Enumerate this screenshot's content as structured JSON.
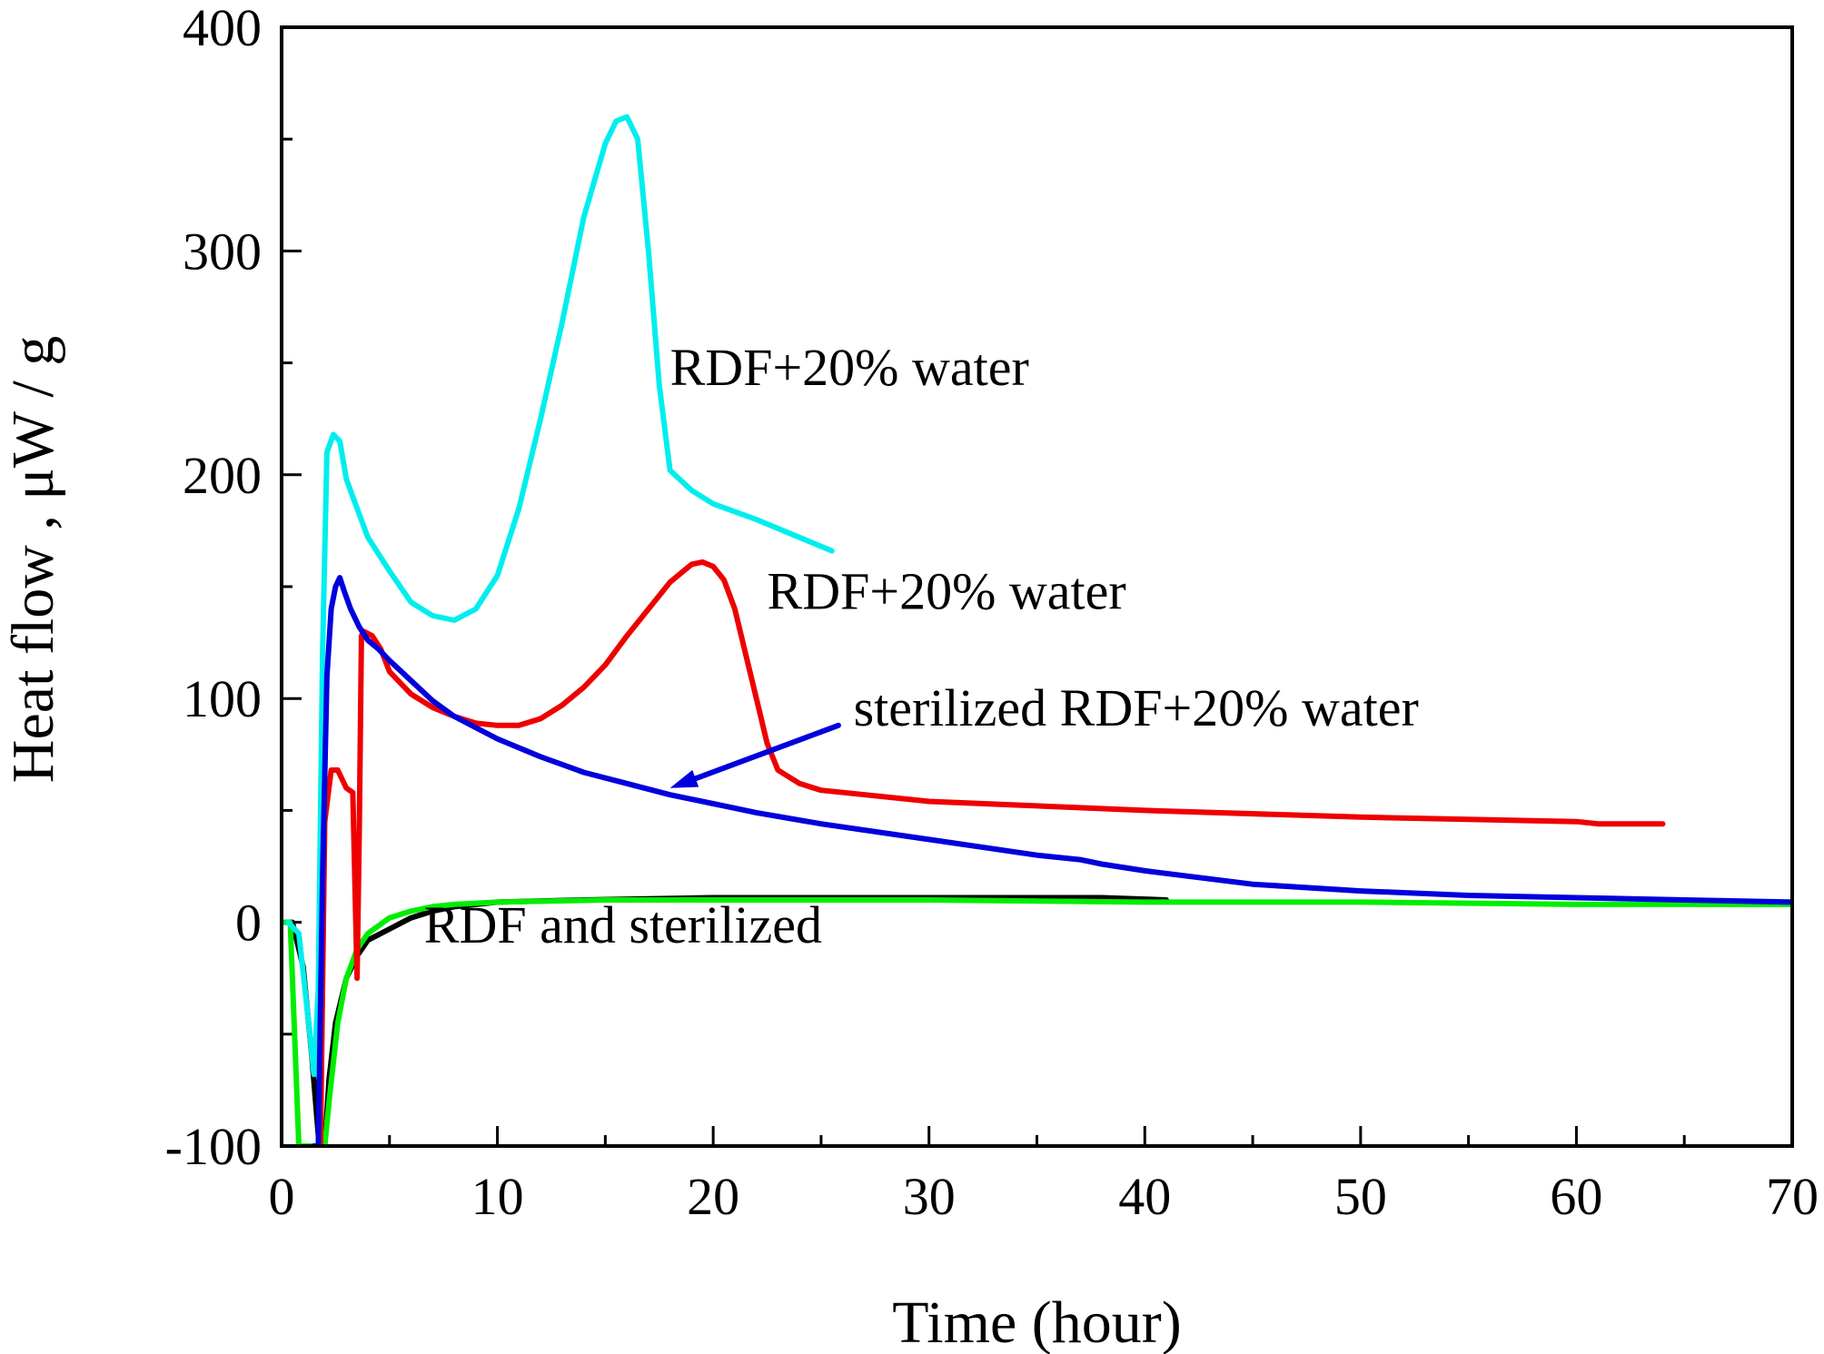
{
  "chart_data": {
    "type": "line",
    "title": "",
    "xlabel": "Time (hour)",
    "ylabel": "Heat flow , μW / g",
    "xlim": [
      0,
      70
    ],
    "ylim": [
      -100,
      400
    ],
    "x_ticks": [
      0,
      10,
      20,
      30,
      40,
      50,
      60,
      70
    ],
    "x_tick_labels": [
      "0",
      "10",
      "20",
      "30",
      "40",
      "50",
      "60",
      "70"
    ],
    "y_ticks": [
      -100,
      0,
      100,
      200,
      300,
      400
    ],
    "y_tick_labels": [
      "-100",
      "0",
      "100",
      "200",
      "300",
      "400"
    ],
    "grid": false,
    "series": [
      {
        "name": "RDF (black)",
        "color": "#000000",
        "x": [
          0.2,
          0.5,
          1.0,
          1.4,
          1.7,
          1.9,
          2.0,
          2.2,
          2.5,
          3.0,
          3.5,
          4.0,
          5.0,
          6.0,
          7.0,
          8.0,
          10.0,
          14.0,
          20.0,
          30.0,
          38.0,
          41.0
        ],
        "y": [
          0,
          0,
          -20,
          -60,
          -95,
          -100,
          -100,
          -70,
          -45,
          -25,
          -15,
          -8,
          -3,
          2,
          5,
          7,
          9,
          10,
          11,
          11,
          11,
          10
        ]
      },
      {
        "name": "sterilized RDF (green)",
        "color": "#00ee00",
        "x": [
          0.1,
          0.4,
          0.6,
          0.8,
          1.0,
          1.5,
          1.8,
          2.0,
          2.2,
          2.6,
          3.0,
          3.5,
          4.0,
          5.0,
          6.0,
          7.0,
          8.0,
          10.0,
          15.0,
          20.0,
          30.0,
          40.0,
          50.0,
          60.0,
          70.0
        ],
        "y": [
          0,
          0,
          -50,
          -100,
          -100,
          -100,
          -100,
          -100,
          -80,
          -45,
          -25,
          -12,
          -5,
          2,
          5,
          7,
          8,
          9,
          10,
          10,
          10,
          9,
          9,
          8,
          8
        ]
      },
      {
        "name": "RDF+20% water (cyan)",
        "color": "#00eeee",
        "x": [
          0.3,
          0.8,
          1.2,
          1.5,
          1.7,
          1.9,
          2.1,
          2.4,
          2.7,
          3.0,
          3.5,
          4.0,
          5.0,
          6.0,
          7.0,
          8.0,
          9.0,
          10.0,
          11.0,
          12.0,
          13.0,
          14.0,
          15.0,
          15.5,
          16.0,
          16.5,
          17.0,
          17.5,
          18.0,
          19.0,
          20.0,
          22.0,
          24.0,
          25.5
        ],
        "y": [
          0,
          -5,
          -40,
          -68,
          -30,
          120,
          210,
          218,
          215,
          198,
          185,
          172,
          157,
          143,
          137,
          135,
          140,
          155,
          185,
          225,
          268,
          315,
          348,
          358,
          360,
          350,
          300,
          240,
          202,
          193,
          187,
          180,
          172,
          166
        ]
      },
      {
        "name": "RDF+20% water (red)",
        "color": "#ee0000",
        "x": [
          1.8,
          2.0,
          2.3,
          2.6,
          3.0,
          3.3,
          3.5,
          3.6,
          3.7,
          3.8,
          4.2,
          4.6,
          5.0,
          6.0,
          7.0,
          8.0,
          9.0,
          10.0,
          11.0,
          12.0,
          13.0,
          14.0,
          15.0,
          16.0,
          17.0,
          18.0,
          19.0,
          19.5,
          20.0,
          20.5,
          21.0,
          21.5,
          22.0,
          22.5,
          23.0,
          24.0,
          25.0,
          30.0,
          40.0,
          50.0,
          60.0,
          61.0,
          64.0
        ],
        "y": [
          -100,
          45,
          68,
          68,
          60,
          58,
          -25,
          40,
          128,
          130,
          128,
          122,
          112,
          102,
          96,
          92,
          89,
          88,
          88,
          91,
          97,
          105,
          115,
          128,
          140,
          152,
          160,
          161,
          159,
          153,
          140,
          120,
          100,
          80,
          68,
          62,
          59,
          54,
          50,
          47,
          45,
          44,
          44
        ]
      },
      {
        "name": "sterilized RDF+20% water (blue)",
        "color": "#0000dd",
        "x": [
          1.5,
          1.7,
          1.9,
          2.1,
          2.3,
          2.5,
          2.7,
          2.9,
          3.2,
          3.6,
          4.0,
          4.5,
          5.0,
          6.0,
          7.0,
          8.0,
          10.0,
          12.0,
          14.0,
          16.0,
          18.0,
          20.0,
          22.0,
          25.0,
          30.0,
          35.0,
          37.0,
          38.0,
          40.0,
          45.0,
          50.0,
          55.0,
          60.0,
          65.0,
          70.0
        ],
        "y": [
          -100,
          -100,
          20,
          110,
          140,
          150,
          154,
          148,
          140,
          132,
          126,
          122,
          117,
          108,
          99,
          92,
          82,
          74,
          67,
          62,
          57,
          53,
          49,
          44,
          37,
          30,
          28,
          26,
          23,
          17,
          14,
          12,
          11,
          10,
          9
        ]
      }
    ],
    "annotations": [
      {
        "text": "RDF+20% water",
        "x": 18.0,
        "y": 240
      },
      {
        "text": "RDF+20% water",
        "x": 22.5,
        "y": 140
      },
      {
        "text": "sterilized RDF+20% water",
        "x": 26.5,
        "y": 88
      },
      {
        "text": "RDF and sterilized",
        "x": 6.6,
        "y": -9
      }
    ],
    "arrow": {
      "from": [
        25.8,
        88
      ],
      "to": [
        18.0,
        60
      ],
      "color": "#0000dd"
    }
  }
}
